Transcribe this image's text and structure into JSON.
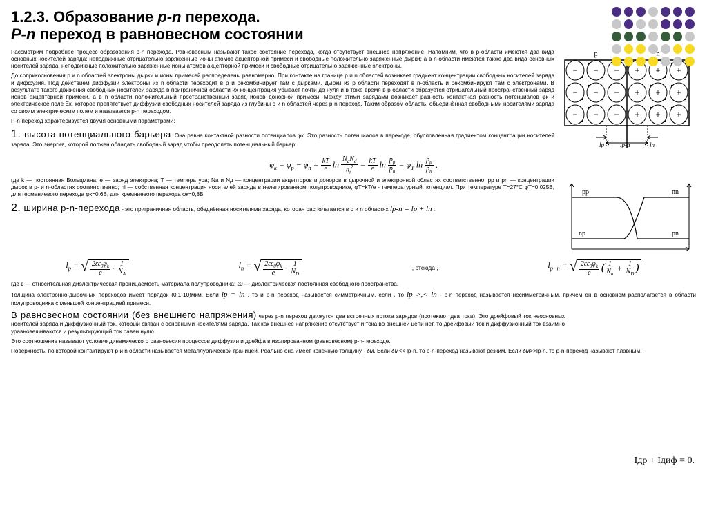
{
  "title": {
    "line1_a": "1.2.3. Образование ",
    "line1_b": "p-n",
    "line1_c": " перехода.",
    "line2_a": " P-n",
    "line2_b": " переход в равновесном состоянии"
  },
  "decor": {
    "rows": [
      [
        "#4b2e83",
        "#4b2e83",
        "#4b2e83",
        "#c8c8c8",
        "#4b2e83",
        "#4b2e83",
        "#4b2e83"
      ],
      [
        "#c8c8c8",
        "#4b2e83",
        "#c8c8c8",
        "#c8c8c8",
        "#4b2e83",
        "#4b2e83",
        "#4b2e83"
      ],
      [
        "#355c3a",
        "#355c3a",
        "#355c3a",
        "#c8c8c8",
        "#355c3a",
        "#355c3a",
        "#c8c8c8"
      ],
      [
        "#c8c8c8",
        "#f7da21",
        "#f7da21",
        "#c8c8c8",
        "#c8c8c8",
        "#f7da21",
        "#f7da21"
      ],
      [
        "#f7da21",
        "#f7da21",
        "#f7da21",
        "#f7da21",
        "#c8c8c8",
        "#c8c8c8",
        "#f7da21"
      ]
    ]
  },
  "para1": "Рассмотрим подробнее процесс образования p-n перехода. Равновесным называют такое состояние перехода, когда отсутствует внешнее напряжение. Напомним, что в p-области имеются два вида основных носителей заряда: неподвижные отрицательно заряженные ионы атомов акцепторной примеси и свободные положительно заряженные дырки; а в n-области имеются также два вида основных носителей заряда: неподвижные положительно заряженные ионы атомов акцепторной примеси и свободные отрицательно заряженные электроны.",
  "para2": "До соприкосновения p и n областей электроны дырки и ионы примесей распределены равномерно. При контакте на границе p и n областей возникает градиент концентрации свободных носителей заряда и диффузия. Под действием диффузии электроны из n области переходит в p и рекомбинирует там с дырками. Дырки из p области переходят в n-область и рекомбинируют там с электронами. В результате такого движения свободных носителей заряда в приграничной области их концентрация убывает почти до нуля и в тоже время в p области образуется отрицательный пространственный заряд ионов акцепторной примеси, а в n области положительный пространственный заряд ионов донорной примеси. Между этими зарядами возникает разность контактная разность потенциалов φк и электрическое поле Eк, которое препятствует диффузии свободных носителей заряда из глубины p и n областей через p-n переход. Таким образом область, объединённая свободными носителями заряда со своим электрическим полем и называется p-n переходом.",
  "para3": "P-n-переход характеризуется двумя основными параметрами:",
  "sec1_head": "высота потенциального барьера",
  "sec1_num": "1.",
  "sec1_tail": ". Она равна контактной разности потенциалов φк. Это разность потенциалов в переходе, обусловленная градиентом концентрации носителей заряда. Это энергия, которой должен обладать свободный заряд чтобы преодолеть потенциальный барьер:",
  "formula1": "φk = φp − φn = (kT/e) ln (NaNd / ni²) = (kT/e) ln (pp/pn) = φT ln (pp/pn) ,",
  "para4": "где k — постоянная Больцмана; e — заряд электрона; T — температура; Na и Nд — концентрации акцепторов и доноров в дырочной и электронной областях соответственно; pp и pn — концентрации дырок в p- и n-областях соответственно; ni — собственная концентрация носителей заряда в нелегированном полупроводнике, φT=kT/e - температурный потенциал. При температуре T=27°C φT=0.025В, для германиевого перехода φк=0,6В, для кремниевого перехода φк=0,8В.",
  "sec2_num": "2.",
  "sec2_head": "ширина p-n-перехода",
  "sec2_tail": " - это приграничная область, обеднённая носителями заряда, которая располагается в p и n областях ",
  "sec2_eq": "lp-n = lp + ln",
  "formula2": {
    "lp": "lp = √(2εε0φk / e · 1/NA)",
    "ln": "ln = √(2εε0φk / e · 1/NД)",
    "mid": ", отсюда ,",
    "lpn": "lp−n = √(2εε0φk / e · (1/Na + 1/NД))"
  },
  "para5": "где ε — относительная диэлектрическая проницаемость материала полупроводника; ε0 — диэлектрическая постоянная свободного пространства.",
  "para6a": "Толщина электронно-дырочных переходов имеет порядок (0,1-10)мкм. Если ",
  "para6b": "lp = ln",
  "para6c": " , то и p-n переход называется симметричным, если , то ",
  "para6d": "lp >,< ln",
  "para6e": " - p-n переход называется несимметричным, причём он в основном располагается в области полупроводника с меньшей концентрацией примеси.",
  "eq_head": "В равновесном состоянии (без внешнего напряжения)",
  "eq_text": " через p-n переход движутся два встречных потока зарядов (протекают два тока). Это дрейфовый ток неосновных носителей заряда и диффузионный ток, который связан с основными носителями заряда. Так как внешнее напряжение отсутствует и тока во внешней цепи нет, то дрейфовый ток и диффузионный ток взаимно уравновешиваются и результирующий ток равен нулю.",
  "para7": "Это соотношение называют условие динамического равновесия процессов диффузии и дрейфа в изолированном (равновесном) p-n-переходе.",
  "para8": "Поверхность, по которой контактируют p и n области называется металлургической границей. Реально она имеет конечную толщину - δм. Если δм<< lp-n, то p-n-переход называют резким. Если δм>>lp-n, то p-n-переход называют плавным.",
  "side_equation": "Iдр + Iдиф = 0.",
  "diagram": {
    "p_label": "p",
    "n_label": "n",
    "lp_label": "lp",
    "lpn_label": "lp-n",
    "ln_label": "ln",
    "cols": 6,
    "rows": 3,
    "p_symbol": "−",
    "n_symbol": "+",
    "border_color": "#000"
  },
  "graph": {
    "pp": "pp",
    "nn": "nn",
    "np": "np",
    "pn": "pn",
    "border_color": "#000"
  }
}
